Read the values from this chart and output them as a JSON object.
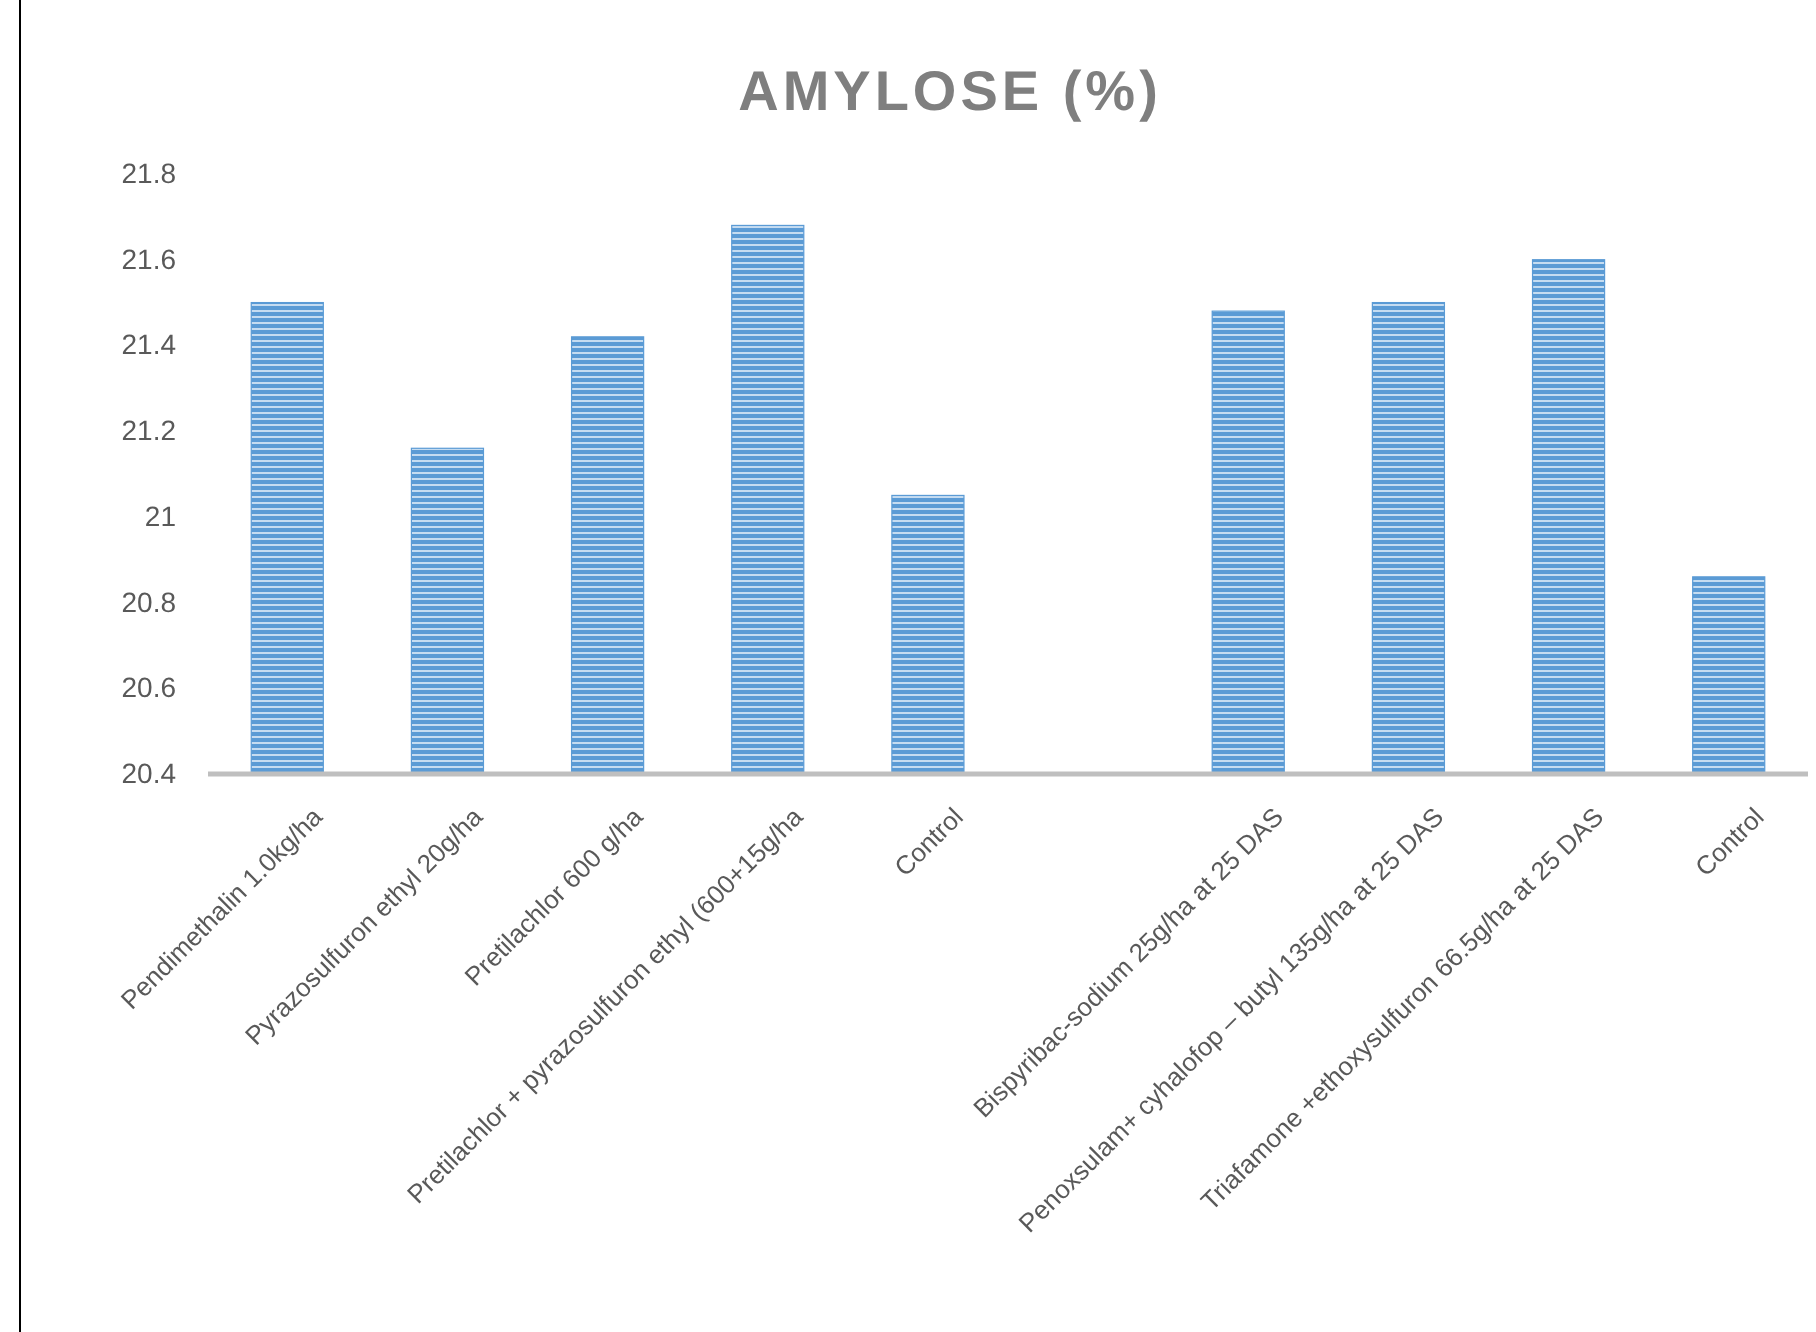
{
  "chart_data": {
    "type": "bar",
    "title": "AMYLOSE (%)",
    "categories": [
      "Pendimethalin 1.0kg/ha",
      "Pyrazosulfuron ethyl 20g/ha",
      "Pretilachlor 600 g/ha",
      "Pretilachlor + pyrazosulfuron ethyl (600+15g/ha",
      "Control",
      null,
      "Bispyribac-sodium 25g/ha at 25 DAS",
      "Penoxsulam+ cyhalofop – butyl 135g/ha at 25 DAS",
      "Triafamone +ethoxysulfuron 66.5g/ha at 25 DAS",
      "Control"
    ],
    "values": [
      21.5,
      21.16,
      21.42,
      21.68,
      21.05,
      null,
      21.48,
      21.5,
      21.6,
      20.86
    ],
    "color": "#5b9bd5",
    "ylim": [
      20.4,
      21.8
    ],
    "yticks": [
      20.4,
      20.6,
      20.8,
      21,
      21.2,
      21.4,
      21.6,
      21.8
    ],
    "grid": false
  }
}
